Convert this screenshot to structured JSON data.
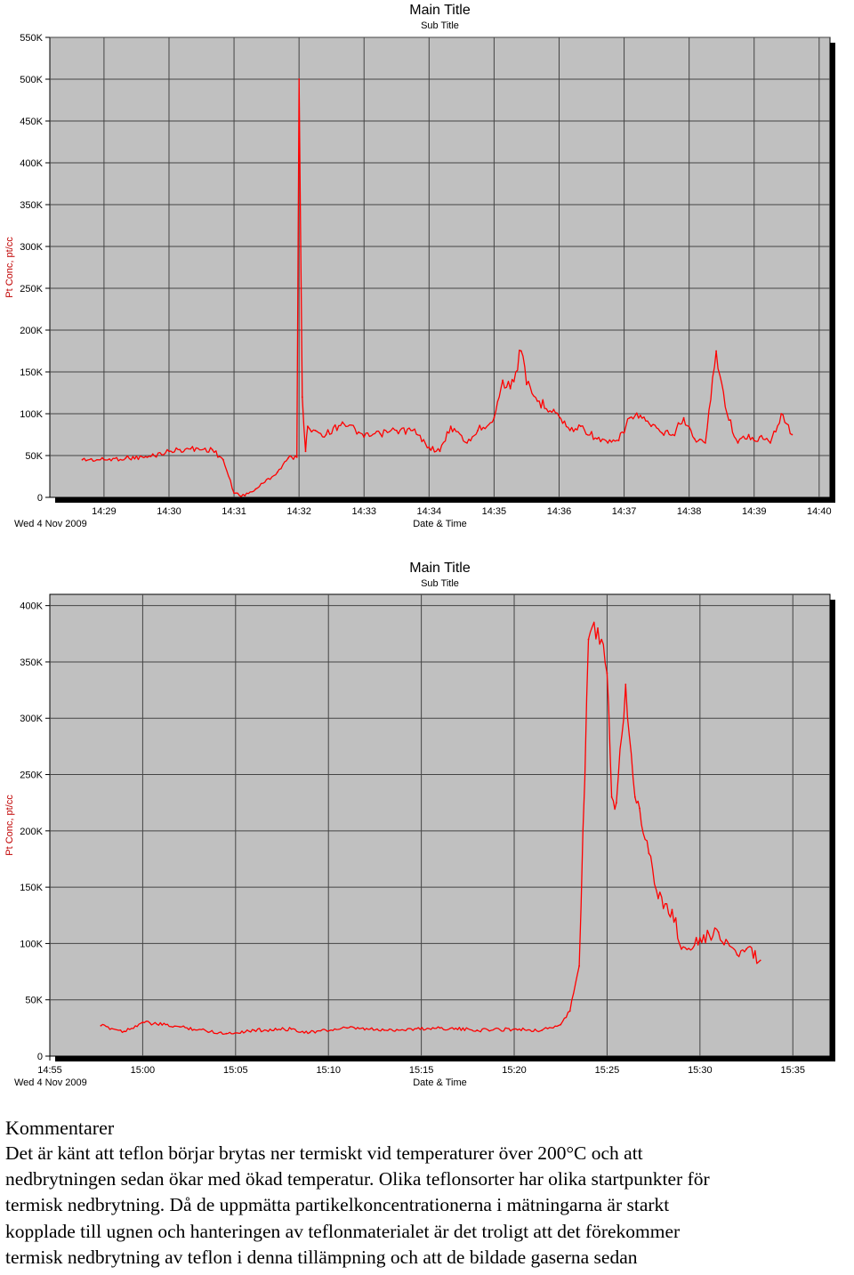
{
  "charts": [
    {
      "title": "Main Title",
      "subtitle": "Sub Title",
      "xlabel": "Date & Time",
      "ylabel": "Pt Conc, pt/cc",
      "date_label": "Wed 4 Nov 2009"
    },
    {
      "title": "Main Title",
      "subtitle": "Sub Title",
      "xlabel": "Date & Time",
      "ylabel": "Pt Conc, pt/cc",
      "date_label": "Wed 4 Nov 2009"
    }
  ],
  "chart_data": [
    {
      "type": "line",
      "title": "Main Title",
      "subtitle": "Sub Title",
      "xlabel": "Date & Time",
      "ylabel": "Pt Conc, pt/cc",
      "ylim": [
        0,
        550000
      ],
      "yticks": [
        0,
        50000,
        100000,
        150000,
        200000,
        250000,
        300000,
        350000,
        400000,
        450000,
        500000,
        550000
      ],
      "ytick_labels": [
        "0",
        "50K",
        "100K",
        "150K",
        "200K",
        "250K",
        "300K",
        "350K",
        "400K",
        "450K",
        "500K",
        "550K"
      ],
      "xlim": [
        "14:28:10",
        "14:40:10"
      ],
      "xticks": [
        "14:29",
        "14:30",
        "14:31",
        "14:32",
        "14:33",
        "14:34",
        "14:35",
        "14:36",
        "14:37",
        "14:38",
        "14:39",
        "14:40"
      ],
      "grid": true,
      "line_color": "#ff0000",
      "series": [
        {
          "x": [
            "14:28:40",
            "14:29:00",
            "14:29:20",
            "14:29:40",
            "14:30:00",
            "14:30:10",
            "14:30:20",
            "14:30:40",
            "14:30:50",
            "14:31:00",
            "14:31:10",
            "14:31:20",
            "14:31:40",
            "14:31:50",
            "14:31:58",
            "14:32:00",
            "14:32:03",
            "14:32:06",
            "14:32:08",
            "14:32:15",
            "14:32:25",
            "14:32:40",
            "14:32:55",
            "14:33:00",
            "14:33:15",
            "14:33:30",
            "14:33:45",
            "14:34:00",
            "14:34:10",
            "14:34:20",
            "14:34:35",
            "14:34:45",
            "14:35:00",
            "14:35:08",
            "14:35:15",
            "14:35:25",
            "14:35:30",
            "14:35:40",
            "14:35:55",
            "14:36:10",
            "14:36:20",
            "14:36:35",
            "14:36:45",
            "14:36:55",
            "14:37:05",
            "14:37:15",
            "14:37:25",
            "14:37:35",
            "14:37:45",
            "14:37:55",
            "14:38:05",
            "14:38:15",
            "14:38:25",
            "14:38:35",
            "14:38:45",
            "14:38:55",
            "14:39:00",
            "14:39:05",
            "14:39:15",
            "14:39:25",
            "14:39:35"
          ],
          "y": [
            45000,
            45000,
            47000,
            48000,
            55000,
            57000,
            58000,
            57000,
            45000,
            5000,
            2000,
            10000,
            30000,
            47000,
            48000,
            500000,
            120000,
            55000,
            85000,
            80000,
            75000,
            90000,
            78000,
            72000,
            76000,
            80000,
            80000,
            60000,
            55000,
            85000,
            65000,
            80000,
            95000,
            140000,
            130000,
            175000,
            135000,
            115000,
            105000,
            80000,
            85000,
            70000,
            65000,
            68000,
            95000,
            98000,
            85000,
            77000,
            75000,
            95000,
            70000,
            65000,
            175000,
            100000,
            65000,
            75000,
            68000,
            72000,
            65000,
            100000,
            75000
          ]
        }
      ]
    },
    {
      "type": "line",
      "title": "Main Title",
      "subtitle": "Sub Title",
      "xlabel": "Date & Time",
      "ylabel": "Pt Conc, pt/cc",
      "ylim": [
        0,
        410000
      ],
      "yticks": [
        0,
        50000,
        100000,
        150000,
        200000,
        250000,
        300000,
        350000,
        400000
      ],
      "ytick_labels": [
        "0",
        "50K",
        "100K",
        "150K",
        "200K",
        "250K",
        "300K",
        "350K",
        "400K"
      ],
      "xlim": [
        "14:55",
        "15:37"
      ],
      "xticks": [
        "14:55",
        "15:00",
        "15:05",
        "15:10",
        "15:15",
        "15:20",
        "15:25",
        "15:30",
        "15:35"
      ],
      "grid": true,
      "line_color": "#ff0000",
      "series": [
        {
          "x": [
            "14:57:45",
            "14:59:00",
            "15:00:00",
            "15:02:00",
            "15:04:30",
            "15:06:00",
            "15:08:00",
            "15:09:00",
            "15:11:00",
            "15:13:00",
            "15:16:00",
            "15:18:00",
            "15:20:00",
            "15:21:30",
            "15:22:30",
            "15:23:00",
            "15:23:30",
            "15:24:00",
            "15:24:30",
            "15:25:00",
            "15:25:15",
            "15:25:30",
            "15:26:00",
            "15:26:30",
            "15:26:45",
            "15:27:15",
            "15:27:45",
            "15:28:30",
            "15:29:00",
            "15:30:00",
            "15:31:00",
            "15:32:00",
            "15:32:30",
            "15:33:15"
          ],
          "y": [
            27000,
            22000,
            30000,
            26000,
            20000,
            23000,
            24000,
            21000,
            25000,
            23000,
            25000,
            23000,
            24000,
            23000,
            28000,
            40000,
            80000,
            370000,
            380000,
            340000,
            230000,
            225000,
            330000,
            230000,
            220000,
            180000,
            140000,
            130000,
            95000,
            105000,
            110000,
            90000,
            95000,
            85000
          ]
        }
      ]
    }
  ],
  "commentary": {
    "heading": "Kommentarer",
    "lines": [
      "Det är känt att teflon börjar brytas ner termiskt vid temperaturer över 200°C och att",
      "nedbrytningen sedan ökar med ökad temperatur. Olika teflonsorter har olika startpunkter för",
      "termisk nedbrytning. Då de uppmätta partikelkoncentrationerna i mätningarna är starkt",
      "kopplade till ugnen och hanteringen av teflonmaterialet är det troligt att det förekommer",
      "termisk nedbrytning av teflon i denna tillämpning och att de bildade gaserna sedan"
    ]
  }
}
